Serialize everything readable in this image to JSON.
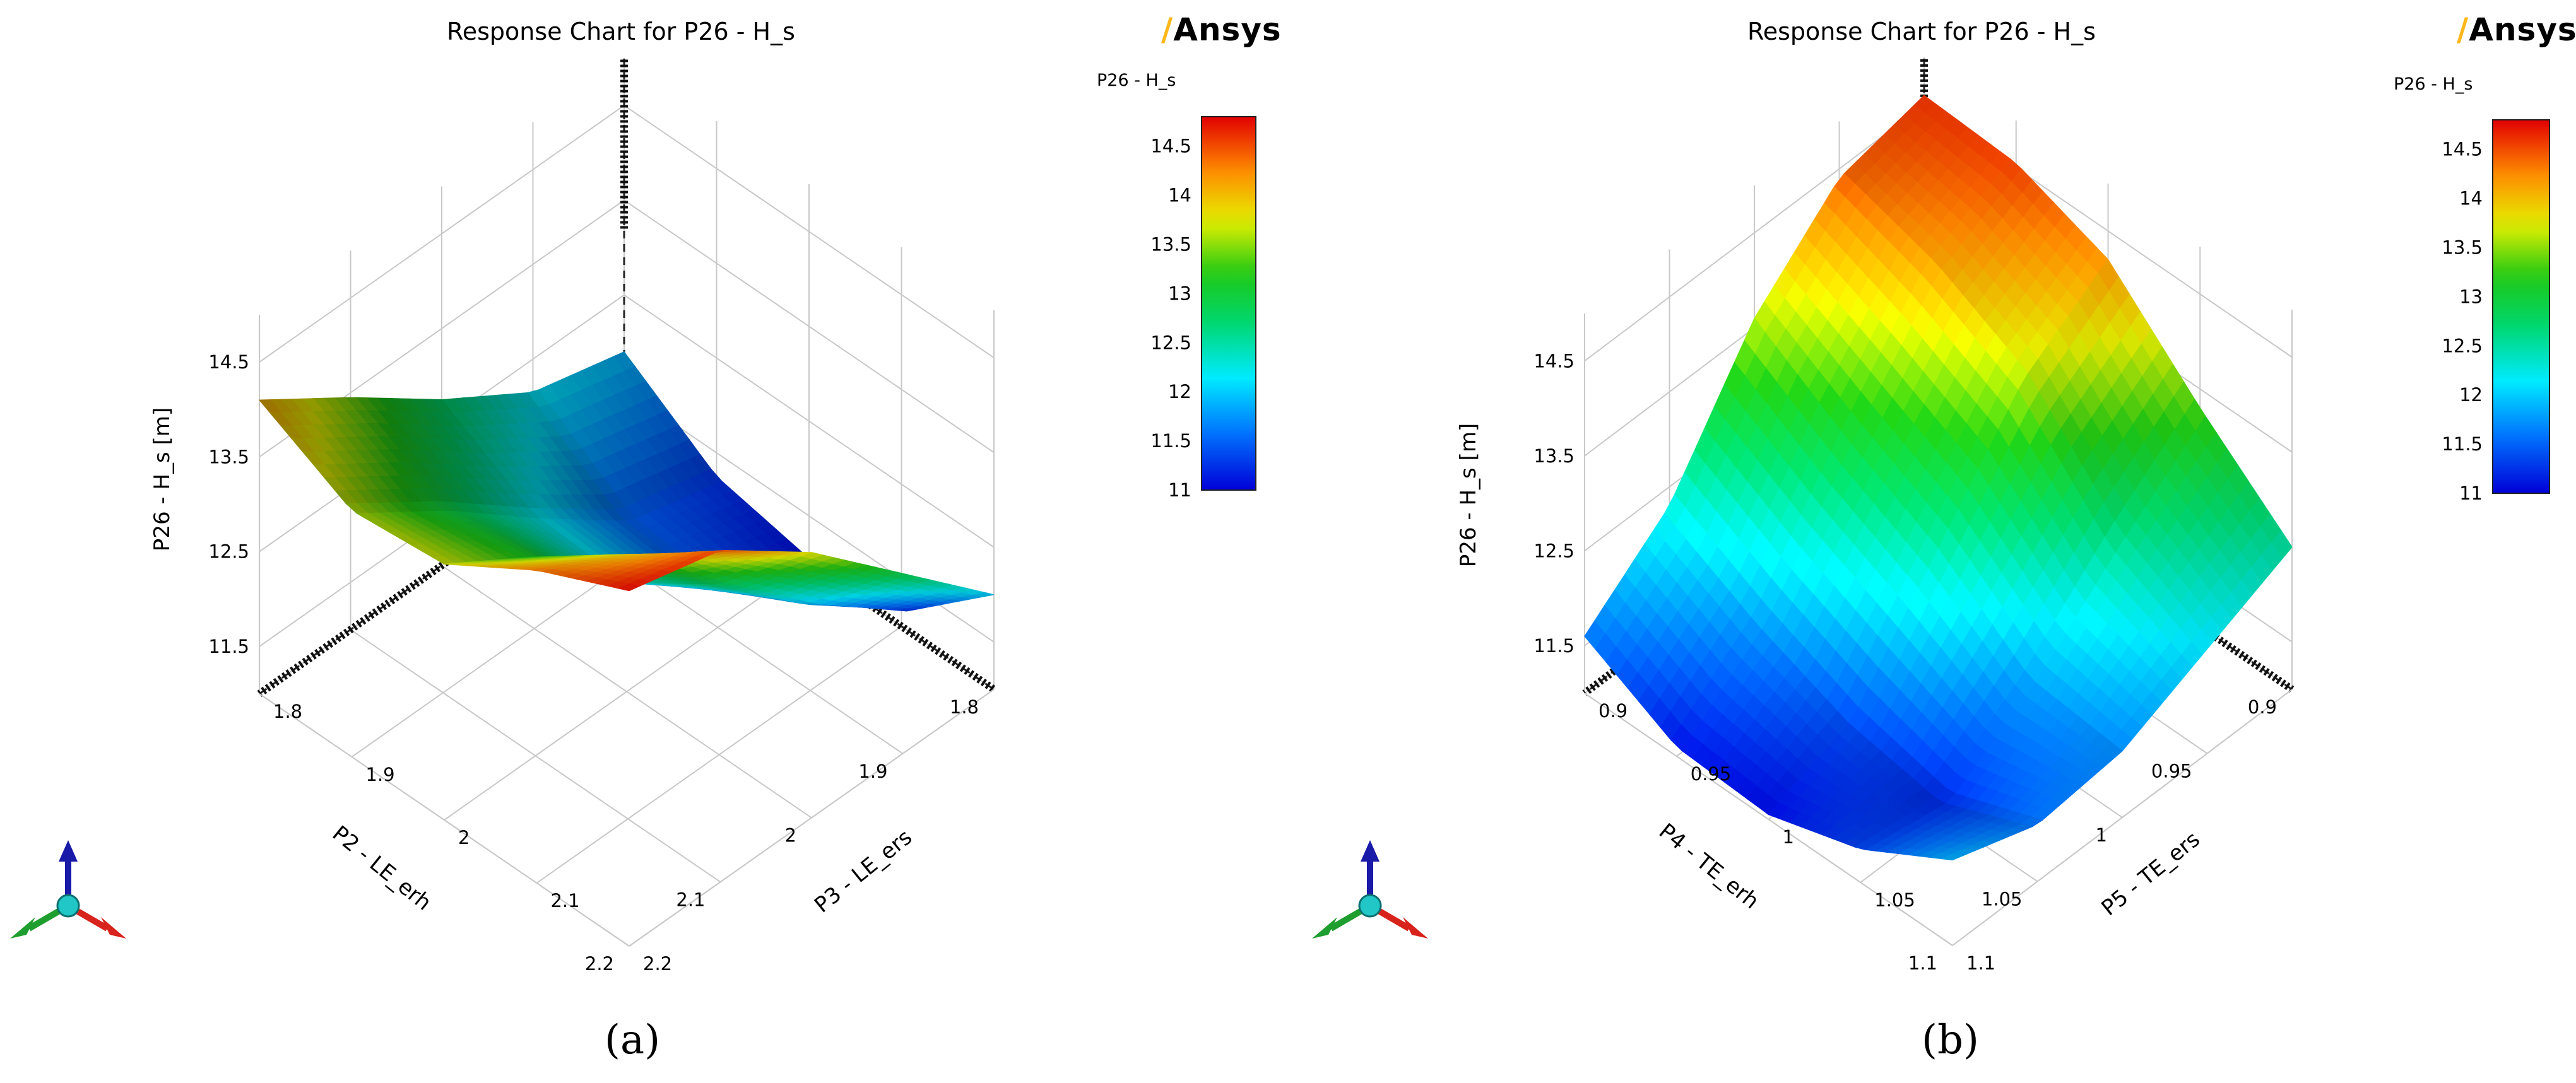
{
  "chart_data": [
    {
      "type": "surface3d",
      "title": "Response Chart for P26 - H_s",
      "brand": "Ansys",
      "zlabel": "P26 - H_s  [m]",
      "xlabel": "P2 - LE_erh",
      "ylabel": "P3 - LE_ers",
      "x_ticks": [
        "1.8",
        "1.9",
        "2",
        "2.1",
        "2.2"
      ],
      "y_ticks": [
        "1.8",
        "1.9",
        "2",
        "2.1",
        "2.2"
      ],
      "z_ticks": [
        "11.5",
        "12.5",
        "13.5",
        "14.5"
      ],
      "xlim": [
        1.8,
        2.2
      ],
      "ylim": [
        1.8,
        2.2
      ],
      "zlim": [
        11,
        15
      ],
      "colorbar": {
        "title": "P26 - H_s",
        "range": [
          11,
          14.8
        ],
        "ticks": [
          "14.5",
          "14",
          "13.5",
          "13",
          "12.5",
          "12",
          "11.5",
          "11"
        ]
      },
      "z_grid": [
        [
          11.9,
          11.25,
          11.05,
          11.15,
          12.0
        ],
        [
          12.15,
          11.5,
          11.4,
          11.9,
          12.9
        ],
        [
          12.75,
          12.2,
          12.15,
          12.8,
          13.8
        ],
        [
          13.45,
          12.95,
          13.1,
          13.8,
          14.5
        ],
        [
          14.1,
          13.6,
          13.7,
          14.3,
          14.75
        ]
      ],
      "sub_label": "(a)"
    },
    {
      "type": "surface3d",
      "title": "Response Chart for P26 - H_s",
      "brand": "Ansys",
      "zlabel": "P26 - H_s  [m]",
      "xlabel": "P4 - TE_erh",
      "ylabel": "P5 - TE_ers",
      "x_ticks": [
        "0.9",
        "0.95",
        "1",
        "1.05",
        "1.1"
      ],
      "y_ticks": [
        "0.9",
        "0.95",
        "1",
        "1.05",
        "1.1"
      ],
      "z_ticks": [
        "11.5",
        "12.5",
        "13.5",
        "14.5"
      ],
      "xlim": [
        0.9,
        1.1
      ],
      "ylim": [
        0.9,
        1.1
      ],
      "zlim": [
        11,
        15
      ],
      "colorbar": {
        "title": "P26 - H_s",
        "range": [
          11,
          14.8
        ],
        "ticks": [
          "14.5",
          "14",
          "13.5",
          "13",
          "12.5",
          "12",
          "11.5",
          "11"
        ]
      },
      "z_grid": [
        [
          14.6,
          14.55,
          14.2,
          13.3,
          12.5
        ],
        [
          14.4,
          14.1,
          13.6,
          12.6,
          12.1
        ],
        [
          13.6,
          13.0,
          12.5,
          11.8,
          11.7
        ],
        [
          12.3,
          11.8,
          11.4,
          11.2,
          11.6
        ],
        [
          11.6,
          11.1,
          11.05,
          11.35,
          11.9
        ]
      ],
      "sub_label": "(b)"
    }
  ]
}
